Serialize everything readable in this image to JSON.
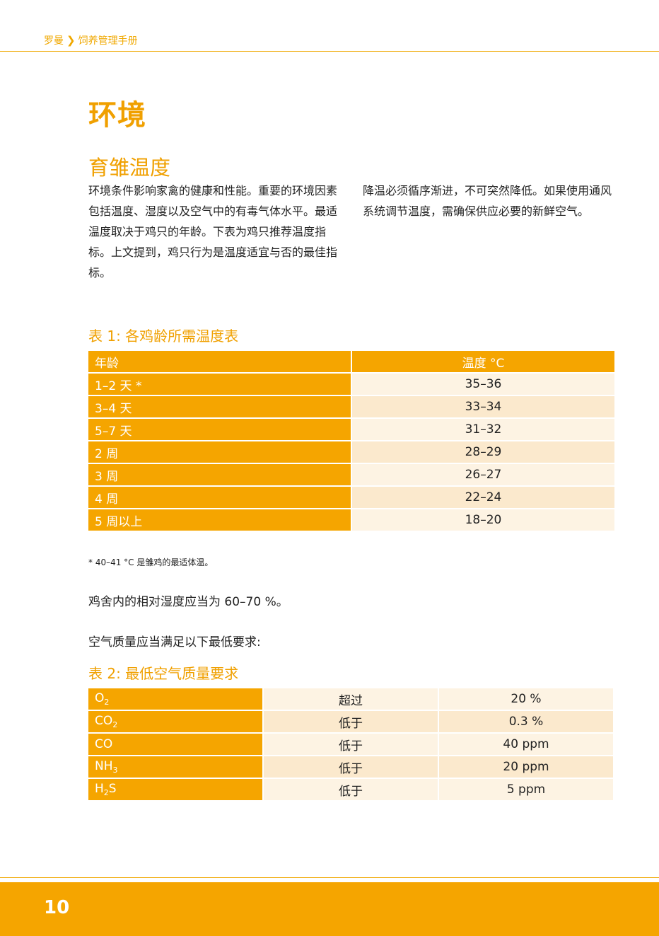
{
  "header": {
    "brand": "罗曼",
    "chevron": "❯",
    "section": "饲养管理手册"
  },
  "title": "环境",
  "subtitle": "育雏温度",
  "body": {
    "left": "环境条件影响家禽的健康和性能。重要的环境因素包括温度、湿度以及空气中的有毒气体水平。最适温度取决于鸡只的年龄。下表为鸡只推荐温度指标。上文提到，鸡只行为是温度适宜与否的最佳指标。",
    "right": "降温必须循序渐进，不可突然降低。如果使用通风系统调节温度，需确保供应必要的新鲜空气。"
  },
  "table1": {
    "caption": "表 1: 各鸡龄所需温度表",
    "header": {
      "age": "年龄",
      "temp": "温度 °C"
    },
    "rows": [
      {
        "age": "1–2 天 *",
        "temp": "35–36"
      },
      {
        "age": "3–4 天",
        "temp": "33–34"
      },
      {
        "age": "5–7 天",
        "temp": "31–32"
      },
      {
        "age": "2 周",
        "temp": "28–29"
      },
      {
        "age": "3 周",
        "temp": "26–27"
      },
      {
        "age": "4 周",
        "temp": "22–24"
      },
      {
        "age": "5 周以上",
        "temp": "18–20"
      }
    ]
  },
  "footnote": "* 40–41 °C 是雏鸡的最适体温。",
  "humidity": "鸡舍内的相对湿度应当为 60–70 %。",
  "air_intro": "空气质量应当满足以下最低要求:",
  "table2": {
    "caption": "表 2: 最低空气质量要求",
    "rows": [
      {
        "gas": "O",
        "sub": "2",
        "cond": "超过",
        "value": "20 %"
      },
      {
        "gas": "CO",
        "sub": "2",
        "cond": "低于",
        "value": "0.3 %"
      },
      {
        "gas": "CO",
        "sub": "",
        "cond": "低于",
        "value": "40 ppm"
      },
      {
        "gas": "NH",
        "sub": "3",
        "cond": "低于",
        "value": "20 ppm"
      },
      {
        "gas": "H",
        "sub": "2",
        "gas_suffix": "S",
        "cond": "低于",
        "value": "5 ppm"
      }
    ]
  },
  "page_number": "10"
}
